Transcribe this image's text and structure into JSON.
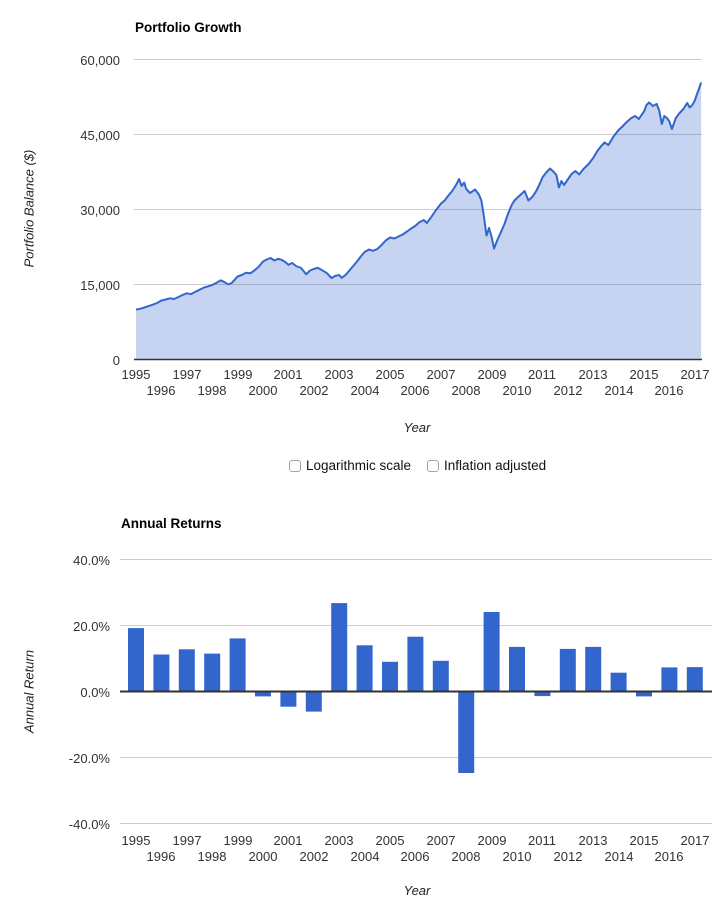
{
  "growth_chart": {
    "title": "Portfolio Growth",
    "y_axis_label": "Portfolio Balance ($)",
    "x_axis_label": "Year",
    "y_tick_labels": [
      "60,000",
      "45,000",
      "30,000",
      "15,000",
      "0"
    ],
    "x_tick_row1": [
      "1995",
      "1997",
      "1999",
      "2001",
      "2003",
      "2005",
      "2007",
      "2009",
      "2011",
      "2013",
      "2015",
      "2017"
    ],
    "x_tick_row2": [
      "1996",
      "1998",
      "2000",
      "2002",
      "2004",
      "2006",
      "2008",
      "2010",
      "2012",
      "2014",
      "2016"
    ]
  },
  "controls": {
    "log_scale_label": "Logarithmic scale",
    "log_scale_checked": false,
    "inflation_label": "Inflation adjusted",
    "inflation_checked": false
  },
  "returns_chart": {
    "title": "Annual Returns",
    "y_axis_label": "Annual Return",
    "x_axis_label": "Year",
    "y_tick_labels": [
      "40.0%",
      "20.0%",
      "0.0%",
      "-20.0%",
      "-40.0%"
    ],
    "x_tick_row1": [
      "1995",
      "1997",
      "1999",
      "2001",
      "2003",
      "2005",
      "2007",
      "2009",
      "2011",
      "2013",
      "2015",
      "2017"
    ],
    "x_tick_row2": [
      "1996",
      "1998",
      "2000",
      "2002",
      "2004",
      "2006",
      "2008",
      "2010",
      "2012",
      "2014",
      "2016"
    ]
  },
  "colors": {
    "series_blue": "#3366cc",
    "area_fill": "#3366cc",
    "area_fill_opacity": 0.28,
    "gridline": "#cccccc",
    "baseline": "#333333",
    "tick_text": "#333333"
  },
  "chart_data": [
    {
      "type": "area",
      "title": "Portfolio Growth",
      "xlabel": "Year",
      "ylabel": "Portfolio Balance ($)",
      "ylim": [
        0,
        60000
      ],
      "y_ticks": [
        0,
        15000,
        30000,
        45000,
        60000
      ],
      "x_range": [
        1995,
        2017.25
      ],
      "grid": true,
      "legend": "none",
      "points": [
        [
          1995.0,
          10000
        ],
        [
          1995.17,
          10150
        ],
        [
          1995.33,
          10400
        ],
        [
          1995.5,
          10680
        ],
        [
          1995.67,
          10980
        ],
        [
          1995.83,
          11300
        ],
        [
          1996.0,
          11800
        ],
        [
          1996.17,
          12000
        ],
        [
          1996.33,
          12250
        ],
        [
          1996.5,
          12100
        ],
        [
          1996.67,
          12500
        ],
        [
          1996.83,
          12900
        ],
        [
          1997.0,
          13250
        ],
        [
          1997.17,
          13080
        ],
        [
          1997.33,
          13520
        ],
        [
          1997.5,
          13950
        ],
        [
          1997.67,
          14380
        ],
        [
          1997.83,
          14620
        ],
        [
          1998.0,
          14900
        ],
        [
          1998.17,
          15350
        ],
        [
          1998.33,
          15850
        ],
        [
          1998.5,
          15450
        ],
        [
          1998.62,
          15050
        ],
        [
          1998.75,
          15250
        ],
        [
          1998.88,
          15950
        ],
        [
          1999.0,
          16600
        ],
        [
          1999.17,
          16900
        ],
        [
          1999.33,
          17350
        ],
        [
          1999.5,
          17250
        ],
        [
          1999.67,
          17850
        ],
        [
          1999.83,
          18550
        ],
        [
          2000.0,
          19600
        ],
        [
          2000.15,
          20000
        ],
        [
          2000.3,
          20300
        ],
        [
          2000.45,
          19800
        ],
        [
          2000.6,
          20150
        ],
        [
          2000.75,
          19900
        ],
        [
          2000.9,
          19400
        ],
        [
          2001.0,
          18950
        ],
        [
          2001.15,
          19300
        ],
        [
          2001.3,
          18700
        ],
        [
          2001.5,
          18300
        ],
        [
          2001.7,
          17050
        ],
        [
          2001.85,
          17800
        ],
        [
          2002.0,
          18100
        ],
        [
          2002.15,
          18350
        ],
        [
          2002.3,
          17950
        ],
        [
          2002.5,
          17350
        ],
        [
          2002.7,
          16300
        ],
        [
          2002.85,
          16750
        ],
        [
          2003.0,
          16900
        ],
        [
          2003.1,
          16350
        ],
        [
          2003.25,
          16900
        ],
        [
          2003.4,
          17800
        ],
        [
          2003.55,
          18700
        ],
        [
          2003.7,
          19600
        ],
        [
          2003.85,
          20600
        ],
        [
          2004.0,
          21500
        ],
        [
          2004.17,
          22000
        ],
        [
          2004.33,
          21750
        ],
        [
          2004.5,
          22100
        ],
        [
          2004.67,
          22900
        ],
        [
          2004.83,
          23800
        ],
        [
          2005.0,
          24400
        ],
        [
          2005.17,
          24200
        ],
        [
          2005.33,
          24600
        ],
        [
          2005.5,
          25000
        ],
        [
          2005.67,
          25600
        ],
        [
          2005.83,
          26200
        ],
        [
          2006.0,
          26750
        ],
        [
          2006.17,
          27500
        ],
        [
          2006.33,
          27900
        ],
        [
          2006.45,
          27300
        ],
        [
          2006.6,
          28300
        ],
        [
          2006.8,
          29800
        ],
        [
          2007.0,
          31150
        ],
        [
          2007.15,
          31800
        ],
        [
          2007.3,
          32800
        ],
        [
          2007.45,
          33700
        ],
        [
          2007.6,
          34900
        ],
        [
          2007.72,
          36100
        ],
        [
          2007.82,
          34700
        ],
        [
          2007.92,
          35400
        ],
        [
          2008.0,
          34100
        ],
        [
          2008.15,
          33300
        ],
        [
          2008.35,
          34000
        ],
        [
          2008.5,
          33000
        ],
        [
          2008.6,
          31800
        ],
        [
          2008.7,
          28500
        ],
        [
          2008.8,
          24800
        ],
        [
          2008.9,
          26300
        ],
        [
          2009.0,
          24500
        ],
        [
          2009.1,
          22200
        ],
        [
          2009.2,
          23600
        ],
        [
          2009.35,
          25300
        ],
        [
          2009.5,
          27000
        ],
        [
          2009.65,
          29200
        ],
        [
          2009.8,
          31000
        ],
        [
          2009.9,
          31800
        ],
        [
          2010.0,
          32300
        ],
        [
          2010.15,
          33000
        ],
        [
          2010.3,
          33700
        ],
        [
          2010.45,
          31800
        ],
        [
          2010.6,
          32500
        ],
        [
          2010.75,
          33600
        ],
        [
          2010.9,
          35200
        ],
        [
          2011.0,
          36400
        ],
        [
          2011.15,
          37400
        ],
        [
          2011.3,
          38200
        ],
        [
          2011.45,
          37500
        ],
        [
          2011.55,
          36900
        ],
        [
          2011.65,
          34400
        ],
        [
          2011.75,
          35700
        ],
        [
          2011.85,
          34900
        ],
        [
          2012.0,
          36000
        ],
        [
          2012.15,
          37100
        ],
        [
          2012.3,
          37700
        ],
        [
          2012.45,
          37000
        ],
        [
          2012.6,
          38000
        ],
        [
          2012.8,
          39000
        ],
        [
          2013.0,
          40300
        ],
        [
          2013.15,
          41600
        ],
        [
          2013.3,
          42600
        ],
        [
          2013.45,
          43400
        ],
        [
          2013.6,
          42900
        ],
        [
          2013.8,
          44600
        ],
        [
          2014.0,
          45900
        ],
        [
          2014.15,
          46600
        ],
        [
          2014.3,
          47400
        ],
        [
          2014.5,
          48300
        ],
        [
          2014.65,
          48700
        ],
        [
          2014.8,
          48100
        ],
        [
          2014.9,
          48900
        ],
        [
          2015.0,
          49600
        ],
        [
          2015.1,
          50900
        ],
        [
          2015.2,
          51400
        ],
        [
          2015.35,
          50700
        ],
        [
          2015.5,
          51100
        ],
        [
          2015.6,
          49800
        ],
        [
          2015.7,
          47100
        ],
        [
          2015.8,
          48700
        ],
        [
          2015.9,
          48300
        ],
        [
          2016.0,
          47600
        ],
        [
          2016.1,
          46100
        ],
        [
          2016.25,
          48300
        ],
        [
          2016.4,
          49300
        ],
        [
          2016.55,
          50100
        ],
        [
          2016.7,
          51300
        ],
        [
          2016.8,
          50400
        ],
        [
          2016.9,
          50900
        ],
        [
          2017.0,
          51800
        ],
        [
          2017.08,
          53000
        ],
        [
          2017.17,
          54200
        ],
        [
          2017.25,
          55400
        ]
      ]
    },
    {
      "type": "bar",
      "title": "Annual Returns",
      "xlabel": "Year",
      "ylabel": "Annual Return",
      "ylim": [
        -40,
        40
      ],
      "y_ticks": [
        -40,
        -20,
        0,
        20,
        40
      ],
      "grid": true,
      "legend": "none",
      "categories": [
        1995,
        1996,
        1997,
        1998,
        1999,
        2000,
        2001,
        2002,
        2003,
        2004,
        2005,
        2006,
        2007,
        2008,
        2009,
        2010,
        2011,
        2012,
        2013,
        2014,
        2015,
        2016,
        2017
      ],
      "values": [
        19.2,
        11.2,
        12.8,
        11.5,
        16.1,
        -1.5,
        -4.6,
        -6.1,
        26.8,
        14.0,
        9.0,
        16.6,
        9.3,
        -24.7,
        24.1,
        13.5,
        -1.4,
        12.9,
        13.5,
        5.7,
        -1.5,
        7.3,
        7.4
      ]
    }
  ]
}
